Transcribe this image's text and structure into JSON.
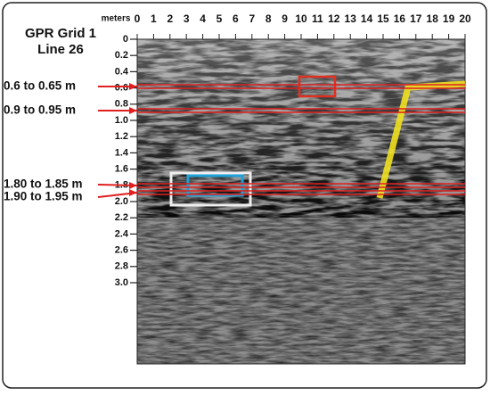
{
  "chart_data": {
    "type": "radargram",
    "title": [
      "GPR Grid 1",
      "Line 26"
    ],
    "x_label": "meters",
    "xlim": [
      0,
      20
    ],
    "xticks": [
      0,
      1,
      2,
      3,
      4,
      5,
      6,
      7,
      8,
      9,
      10,
      11,
      12,
      13,
      14,
      15,
      16,
      17,
      18,
      19,
      20
    ],
    "ylim": [
      0,
      4
    ],
    "yticks": [
      0,
      0.2,
      0.4,
      0.6,
      0.8,
      {
        "value": 1,
        "label": "1.0"
      },
      1.2,
      1.4,
      1.6,
      1.8,
      {
        "value": 2,
        "label": "2.0"
      },
      2.2,
      2.4,
      2.6,
      2.8,
      {
        "value": 3,
        "label": "3.0"
      }
    ],
    "annotations": [
      "0.6 to 0.65 m",
      "0.9 to 0.95 m",
      "1.80 to 1.85 m",
      "1.90 to 1.95 m"
    ]
  }
}
